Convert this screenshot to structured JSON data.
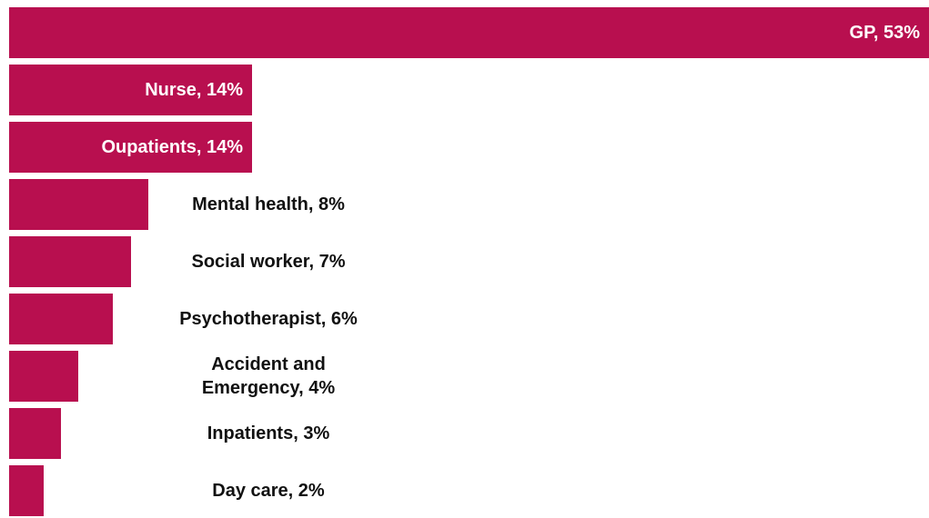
{
  "chart_data": {
    "type": "bar",
    "orientation": "horizontal",
    "color": "#b80f4f",
    "values": [
      53,
      14,
      14,
      8,
      7,
      6,
      4,
      3,
      2
    ],
    "value_labels": [
      "GP, 53%",
      "Nurse, 14%",
      "Oupatients, 14%",
      "Mental health, 8%",
      "Social worker, 7%",
      "Psychotherapist, 6%",
      "Accident and Emergency, 4%",
      "Inpatients, 3%",
      "Day care, 2%"
    ],
    "xlim": [
      0,
      53
    ]
  }
}
